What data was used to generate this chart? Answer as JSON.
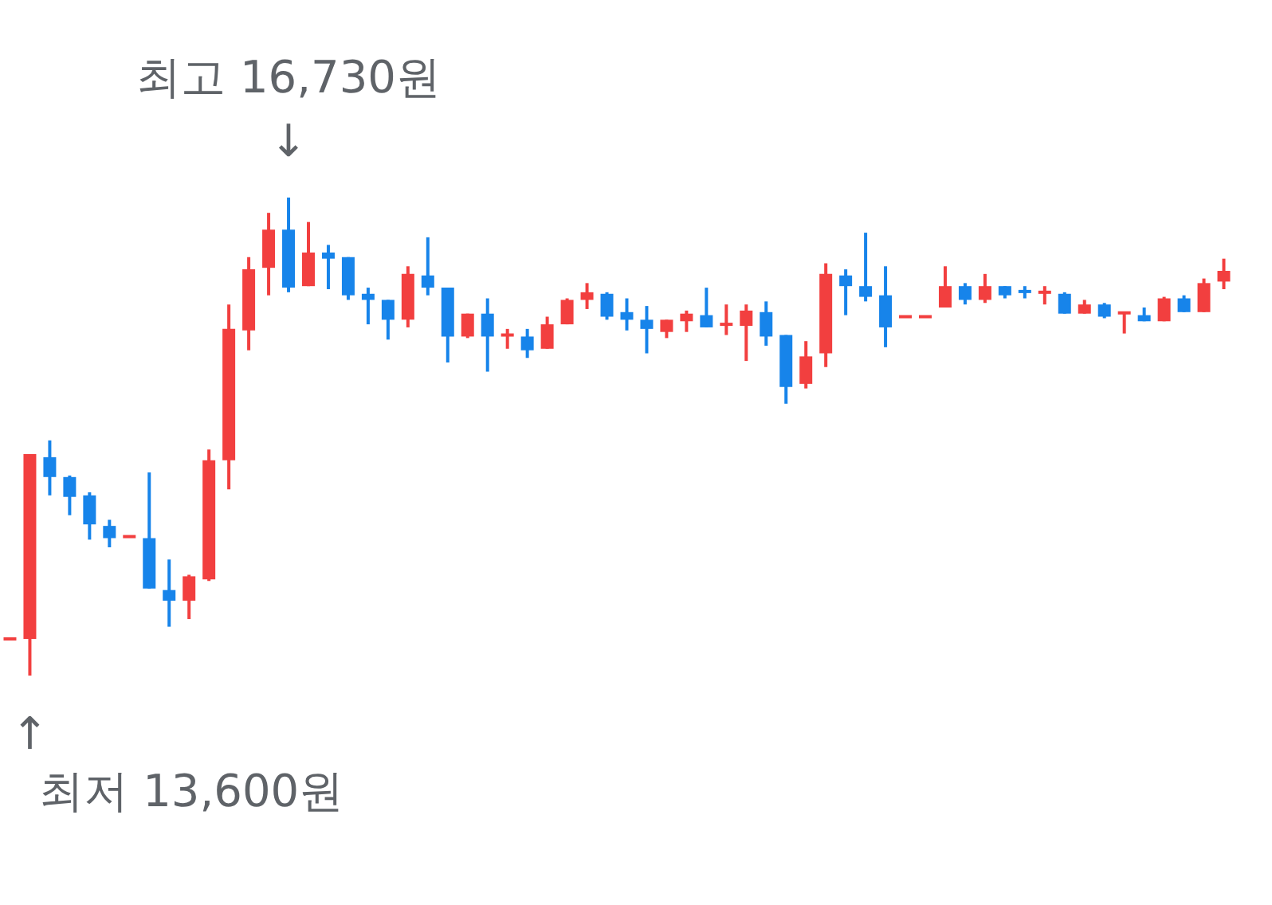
{
  "chart_data": {
    "type": "candlestick",
    "categories": [
      null,
      null,
      null,
      null,
      null,
      null,
      null,
      null,
      null,
      null,
      null,
      null,
      null,
      null,
      null,
      null,
      null,
      null,
      null,
      null,
      null,
      null,
      null,
      null,
      null,
      null,
      null,
      null,
      null,
      null,
      null,
      null,
      null,
      null,
      null,
      null,
      null,
      null,
      null,
      null,
      null,
      null,
      null,
      null,
      null,
      null,
      null,
      null,
      null,
      null,
      null,
      null,
      null,
      null,
      null,
      null,
      null,
      null,
      null,
      null,
      null,
      null
    ],
    "ohlc": [
      [
        13840,
        13840,
        13840,
        13840
      ],
      [
        13840,
        15050,
        13600,
        15050
      ],
      [
        15030,
        15140,
        14780,
        14900
      ],
      [
        14900,
        14910,
        14650,
        14770
      ],
      [
        14780,
        14800,
        14490,
        14590
      ],
      [
        14580,
        14620,
        14440,
        14500
      ],
      [
        14510,
        14510,
        14510,
        14510
      ],
      [
        14500,
        14930,
        14170,
        14170
      ],
      [
        14160,
        14360,
        13920,
        14090
      ],
      [
        14090,
        14260,
        13970,
        14250
      ],
      [
        14230,
        15080,
        14220,
        15010
      ],
      [
        15010,
        16030,
        14820,
        15870
      ],
      [
        15860,
        16340,
        15730,
        16260
      ],
      [
        16270,
        16630,
        16090,
        16520
      ],
      [
        16520,
        16730,
        16110,
        16140
      ],
      [
        16150,
        16570,
        16150,
        16370
      ],
      [
        16370,
        16420,
        16130,
        16330
      ],
      [
        16340,
        16340,
        16060,
        16090
      ],
      [
        16100,
        16140,
        15900,
        16060
      ],
      [
        16060,
        16060,
        15800,
        15930
      ],
      [
        15930,
        16280,
        15880,
        16230
      ],
      [
        16220,
        16470,
        16090,
        16140
      ],
      [
        16140,
        16140,
        15650,
        15820
      ],
      [
        15820,
        15970,
        15810,
        15970
      ],
      [
        15970,
        16070,
        15590,
        15820
      ],
      [
        15820,
        15870,
        15740,
        15840
      ],
      [
        15820,
        15870,
        15680,
        15730
      ],
      [
        15740,
        15950,
        15740,
        15900
      ],
      [
        15900,
        16070,
        15900,
        16060
      ],
      [
        16060,
        16170,
        16000,
        16110
      ],
      [
        16100,
        16110,
        15930,
        15950
      ],
      [
        15980,
        16070,
        15860,
        15930
      ],
      [
        15930,
        16020,
        15710,
        15870
      ],
      [
        15850,
        15930,
        15810,
        15930
      ],
      [
        15920,
        15990,
        15850,
        15970
      ],
      [
        15960,
        16140,
        15880,
        15880
      ],
      [
        15900,
        16030,
        15830,
        15900
      ],
      [
        15890,
        16030,
        15660,
        15990
      ],
      [
        15980,
        16050,
        15760,
        15820
      ],
      [
        15830,
        15830,
        15380,
        15490
      ],
      [
        15510,
        15790,
        15480,
        15690
      ],
      [
        15710,
        16300,
        15620,
        16230
      ],
      [
        16220,
        16260,
        15960,
        16150
      ],
      [
        16150,
        16500,
        16050,
        16080
      ],
      [
        16090,
        16280,
        15750,
        15880
      ],
      [
        15950,
        15950,
        15950,
        15950
      ],
      [
        15950,
        15950,
        15950,
        15950
      ],
      [
        16010,
        16280,
        16010,
        16150
      ],
      [
        16150,
        16170,
        16030,
        16060
      ],
      [
        16060,
        16230,
        16040,
        16150
      ],
      [
        16150,
        16150,
        16070,
        16090
      ],
      [
        16120,
        16150,
        16070,
        16110
      ],
      [
        16110,
        16150,
        16030,
        16110
      ],
      [
        16100,
        16110,
        15970,
        15970
      ],
      [
        15970,
        16060,
        15970,
        16030
      ],
      [
        16030,
        16040,
        15940,
        15950
      ],
      [
        15970,
        15980,
        15840,
        15980
      ],
      [
        15960,
        16010,
        15920,
        15920
      ],
      [
        15920,
        16080,
        15920,
        16070
      ],
      [
        16070,
        16090,
        15980,
        15980
      ],
      [
        15980,
        16200,
        15980,
        16170
      ],
      [
        16180,
        16330,
        16130,
        16250
      ]
    ],
    "annotations": [
      "최고 16,730원",
      "↓",
      "↑",
      "최저 13,600원"
    ]
  }
}
